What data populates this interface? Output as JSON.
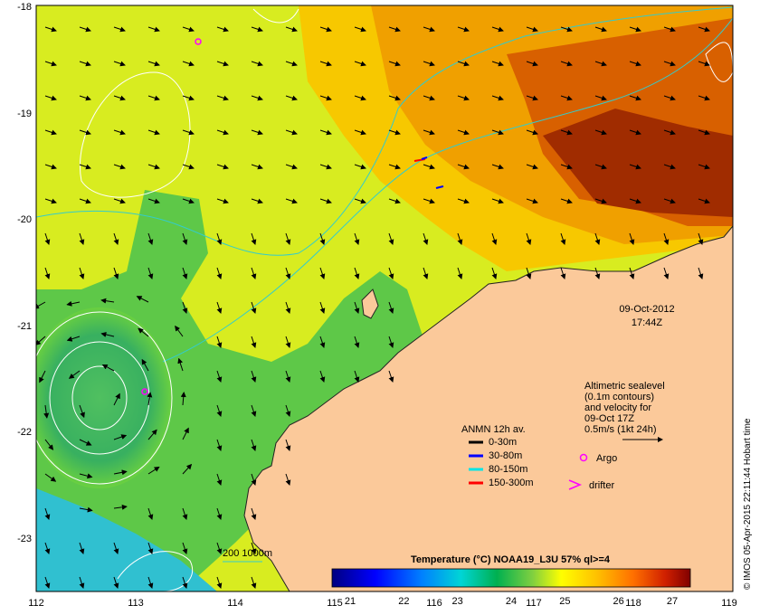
{
  "axes": {
    "lon_ticks": [
      "112",
      "113",
      "114",
      "115",
      "116",
      "117",
      "118",
      "119"
    ],
    "lat_ticks": [
      "-18",
      "-19",
      "-20",
      "-21",
      "-22",
      "-23"
    ]
  },
  "timestamp": {
    "date": "09-Oct-2012",
    "time": "17:44Z"
  },
  "altimetry_note": {
    "lines": [
      "Altimetric sealevel",
      "(0.1m contours)",
      "and velocity for",
      "09-Oct 17Z",
      "0.5m/s (1kt 24h)"
    ]
  },
  "moorings": {
    "title": "ANMN 12h av.",
    "items": [
      {
        "label": "0-30m",
        "color": "#000000"
      },
      {
        "label": "30-80m",
        "color": "#0000ff"
      },
      {
        "label": "80-150m",
        "color": "#00e5e5"
      },
      {
        "label": "150-300m",
        "color": "#ff0000"
      }
    ]
  },
  "symbols": {
    "argo_label": "Argo",
    "drifter_label": "drifter",
    "argo_color": "#ff00ff",
    "drifter_color": "#ff00ff"
  },
  "isobath_label": "200  1000m",
  "colorbar": {
    "title": "Temperature (°C) NOAA19_L3U 57% ql>=4",
    "ticks": [
      "21",
      "22",
      "23",
      "24",
      "25",
      "26",
      "27"
    ]
  },
  "credit": "© IMOS 05-Apr-2015 22:11:44 Hobart time",
  "colors": {
    "land": "#fbc99a",
    "isobath": "#33cccc",
    "contour": "#ffffff"
  }
}
